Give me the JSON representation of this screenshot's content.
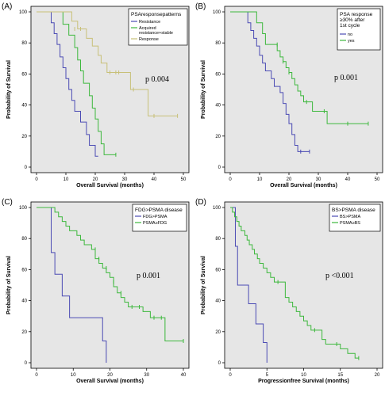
{
  "colors": {
    "blue": "#4b4bb4",
    "green": "#3db83d",
    "tan": "#c8c078",
    "plot_bg": "#e6e6e6"
  },
  "chart_data": [
    {
      "type": "line",
      "panel_label": "(A)",
      "xlabel": "Overall Survival (months)",
      "ylabel": "Probability of Survival",
      "xlim": [
        0,
        50
      ],
      "ylim": [
        0,
        100
      ],
      "xticks": [
        "0",
        "10",
        "20",
        "30",
        "40",
        "50"
      ],
      "yticks": [
        "0",
        "20",
        "40",
        "60",
        "80",
        "100"
      ],
      "legend_title": "PSAresponsepatterns",
      "legend_position": "top-right",
      "annotation": "p 0.004",
      "series": [
        {
          "name": "Resistance",
          "color": "#4b4bb4",
          "steps": [
            [
              0,
              100
            ],
            [
              4,
              100
            ],
            [
              5,
              93
            ],
            [
              6,
              86
            ],
            [
              7,
              79
            ],
            [
              8,
              71
            ],
            [
              9,
              64
            ],
            [
              10,
              57
            ],
            [
              11,
              50
            ],
            [
              12,
              43
            ],
            [
              13,
              36
            ],
            [
              15,
              29
            ],
            [
              17,
              21
            ],
            [
              18,
              14
            ],
            [
              20,
              7
            ],
            [
              21,
              7
            ]
          ],
          "censored": []
        },
        {
          "name": "Acquired resistance+stable",
          "color": "#3db83d",
          "steps": [
            [
              0,
              100
            ],
            [
              8,
              100
            ],
            [
              9,
              92
            ],
            [
              11,
              85
            ],
            [
              13,
              77
            ],
            [
              14,
              69
            ],
            [
              15,
              62
            ],
            [
              16,
              54
            ],
            [
              18,
              46
            ],
            [
              19,
              38
            ],
            [
              20,
              31
            ],
            [
              21,
              23
            ],
            [
              22,
              15
            ],
            [
              23,
              8
            ],
            [
              27,
              8
            ]
          ],
          "censored": [
            [
              27,
              8
            ]
          ]
        },
        {
          "name": "Response",
          "color": "#c8c078",
          "steps": [
            [
              0,
              100
            ],
            [
              11,
              100
            ],
            [
              12,
              94
            ],
            [
              14,
              89
            ],
            [
              17,
              83
            ],
            [
              19,
              78
            ],
            [
              21,
              72
            ],
            [
              22,
              67
            ],
            [
              24,
              61
            ],
            [
              30,
              61
            ],
            [
              32,
              50
            ],
            [
              34,
              50
            ],
            [
              38,
              33
            ],
            [
              48,
              33
            ]
          ],
          "censored": [
            [
              13,
              89
            ],
            [
              15,
              89
            ],
            [
              25,
              61
            ],
            [
              27,
              61
            ],
            [
              28,
              61
            ],
            [
              33,
              50
            ],
            [
              40,
              33
            ],
            [
              48,
              33
            ]
          ]
        }
      ]
    },
    {
      "type": "line",
      "panel_label": "(B)",
      "xlabel": "Overall Survival (months)",
      "ylabel": "Probability of Survival",
      "xlim": [
        0,
        50
      ],
      "ylim": [
        0,
        100
      ],
      "xticks": [
        "0",
        "10",
        "20",
        "30",
        "40",
        "50"
      ],
      "yticks": [
        "0",
        "20",
        "40",
        "60",
        "80",
        "100"
      ],
      "legend_title": "PSA response\n≥30% after\n1st cycle",
      "legend_position": "top-right",
      "annotation": "p 0.001",
      "series": [
        {
          "name": "no",
          "color": "#4b4bb4",
          "steps": [
            [
              0,
              100
            ],
            [
              5,
              100
            ],
            [
              6,
              93
            ],
            [
              7,
              88
            ],
            [
              8,
              83
            ],
            [
              9,
              78
            ],
            [
              10,
              72
            ],
            [
              11,
              67
            ],
            [
              12,
              62
            ],
            [
              14,
              57
            ],
            [
              15,
              52
            ],
            [
              17,
              48
            ],
            [
              18,
              41
            ],
            [
              19,
              34
            ],
            [
              20,
              28
            ],
            [
              21,
              21
            ],
            [
              22,
              14
            ],
            [
              23,
              10
            ],
            [
              27,
              10
            ]
          ],
          "censored": [
            [
              24,
              10
            ],
            [
              27,
              10
            ]
          ]
        },
        {
          "name": "yes",
          "color": "#3db83d",
          "steps": [
            [
              0,
              100
            ],
            [
              8,
              100
            ],
            [
              9,
              93
            ],
            [
              11,
              86
            ],
            [
              12,
              79
            ],
            [
              15,
              79
            ],
            [
              16,
              75
            ],
            [
              17,
              71
            ],
            [
              18,
              68
            ],
            [
              19,
              64
            ],
            [
              20,
              61
            ],
            [
              21,
              57
            ],
            [
              22,
              53
            ],
            [
              23,
              49
            ],
            [
              24,
              46
            ],
            [
              25,
              42
            ],
            [
              27,
              42
            ],
            [
              28,
              36
            ],
            [
              30,
              36
            ],
            [
              33,
              28
            ],
            [
              47,
              28
            ]
          ],
          "censored": [
            [
              16,
              79
            ],
            [
              18,
              68
            ],
            [
              20,
              61
            ],
            [
              26,
              42
            ],
            [
              32,
              36
            ],
            [
              40,
              28
            ],
            [
              47,
              28
            ]
          ]
        }
      ]
    },
    {
      "type": "line",
      "panel_label": "(C)",
      "xlabel": "Overall Survival (months)",
      "ylabel": "Probability of Survival",
      "xlim": [
        0,
        40
      ],
      "ylim": [
        0,
        100
      ],
      "xticks": [
        "0",
        "10",
        "20",
        "30",
        "40"
      ],
      "yticks": [
        "0",
        "20",
        "40",
        "60",
        "80",
        "100"
      ],
      "legend_title": "FDG>PSMA disease",
      "legend_position": "top-right",
      "annotation": "p 0.001",
      "series": [
        {
          "name": "FDG>PSMA",
          "color": "#4b4bb4",
          "steps": [
            [
              0,
              100
            ],
            [
              3,
              100
            ],
            [
              4,
              71
            ],
            [
              5,
              57
            ],
            [
              7,
              43
            ],
            [
              9,
              29
            ],
            [
              17,
              29
            ],
            [
              18,
              14
            ],
            [
              19,
              0
            ]
          ],
          "censored": []
        },
        {
          "name": "PSMA≥FDG",
          "color": "#3db83d",
          "steps": [
            [
              0,
              100
            ],
            [
              4,
              100
            ],
            [
              5,
              97
            ],
            [
              6,
              94
            ],
            [
              7,
              91
            ],
            [
              8,
              88
            ],
            [
              9,
              85
            ],
            [
              11,
              82
            ],
            [
              12,
              79
            ],
            [
              13,
              76
            ],
            [
              15,
              73
            ],
            [
              16,
              67
            ],
            [
              17,
              64
            ],
            [
              18,
              61
            ],
            [
              19,
              58
            ],
            [
              20,
              55
            ],
            [
              21,
              49
            ],
            [
              22,
              45
            ],
            [
              23,
              42
            ],
            [
              24,
              39
            ],
            [
              25,
              36
            ],
            [
              29,
              33
            ],
            [
              31,
              29
            ],
            [
              34,
              29
            ],
            [
              35,
              14
            ],
            [
              40,
              14
            ]
          ],
          "censored": [
            [
              16,
              73
            ],
            [
              17,
              67
            ],
            [
              19,
              61
            ],
            [
              21,
              52
            ],
            [
              23,
              45
            ],
            [
              26,
              36
            ],
            [
              28,
              36
            ],
            [
              32,
              29
            ],
            [
              34,
              29
            ],
            [
              40,
              14
            ]
          ]
        }
      ]
    },
    {
      "type": "line",
      "panel_label": "(D)",
      "xlabel": "Progressionfree Survival (months)",
      "ylabel": "Probability of Survival",
      "xlim": [
        0,
        20
      ],
      "ylim": [
        0,
        100
      ],
      "xticks": [
        "0",
        "5",
        "10",
        "15",
        "20"
      ],
      "yticks": [
        "0",
        "20",
        "40",
        "60",
        "80",
        "100"
      ],
      "legend_title": "BS>PSMA disease",
      "legend_position": "top-right",
      "annotation": "p <0.001",
      "series": [
        {
          "name": "BS>PSMA",
          "color": "#4b4bb4",
          "steps": [
            [
              0,
              100
            ],
            [
              0.5,
              100
            ],
            [
              0.7,
              75
            ],
            [
              1,
              50
            ],
            [
              2.5,
              38
            ],
            [
              3.5,
              25
            ],
            [
              4.5,
              13
            ],
            [
              5,
              0
            ]
          ],
          "censored": []
        },
        {
          "name": "PSMA≥BS",
          "color": "#3db83d",
          "steps": [
            [
              0,
              100
            ],
            [
              0.3,
              97
            ],
            [
              0.6,
              94
            ],
            [
              0.9,
              91
            ],
            [
              1.2,
              88
            ],
            [
              1.5,
              85
            ],
            [
              2,
              82
            ],
            [
              2.3,
              79
            ],
            [
              2.6,
              76
            ],
            [
              3,
              73
            ],
            [
              3.3,
              70
            ],
            [
              3.7,
              67
            ],
            [
              4,
              64
            ],
            [
              4.5,
              61
            ],
            [
              5,
              58
            ],
            [
              5.5,
              55
            ],
            [
              6,
              52
            ],
            [
              7,
              52
            ],
            [
              7.5,
              42
            ],
            [
              8,
              39
            ],
            [
              8.5,
              36
            ],
            [
              9,
              33
            ],
            [
              9.5,
              30
            ],
            [
              10,
              27
            ],
            [
              10.5,
              24
            ],
            [
              11,
              21
            ],
            [
              12,
              21
            ],
            [
              12.5,
              15
            ],
            [
              13,
              12
            ],
            [
              14,
              12
            ],
            [
              15,
              9
            ],
            [
              16,
              6
            ],
            [
              17,
              3
            ],
            [
              17.5,
              3
            ]
          ],
          "censored": [
            [
              6.5,
              52
            ],
            [
              11.5,
              21
            ],
            [
              14.5,
              12
            ],
            [
              17.5,
              3
            ]
          ]
        }
      ]
    }
  ]
}
